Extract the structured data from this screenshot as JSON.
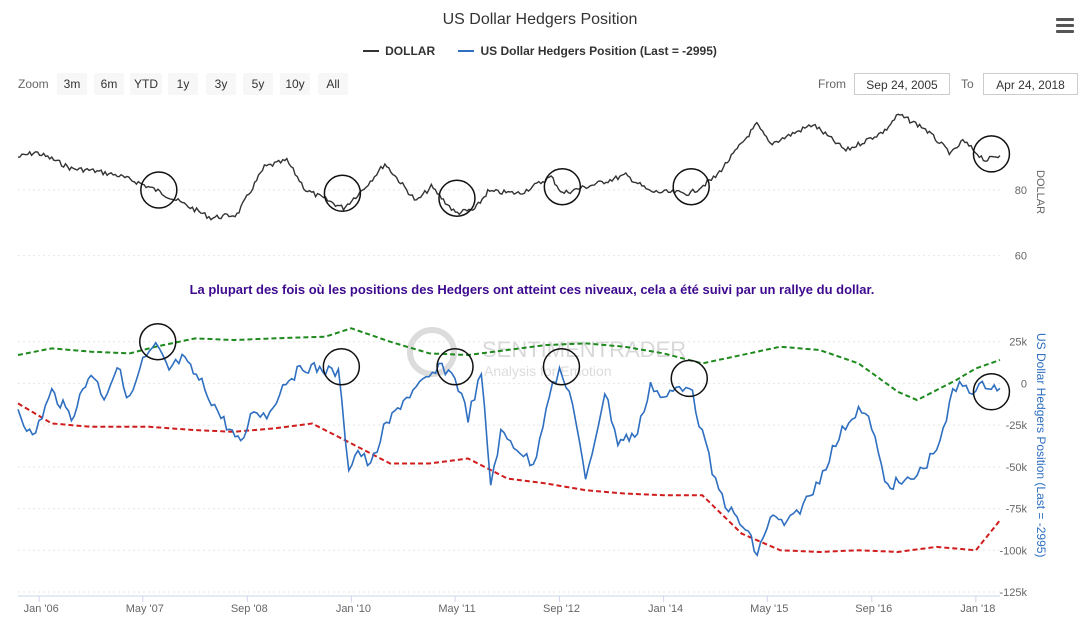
{
  "header": {
    "title": "US Dollar Hedgers Position",
    "legend": [
      {
        "label": "DOLLAR",
        "color": "#333333"
      },
      {
        "label": "US Dollar Hedgers Position (Last = -2995)",
        "color": "#2f6fc0"
      }
    ]
  },
  "toolbar": {
    "zoom_label": "Zoom",
    "zoom_buttons": [
      "3m",
      "6m",
      "YTD",
      "1y",
      "3y",
      "5y",
      "10y",
      "All"
    ],
    "from_label": "From",
    "from_value": "Sep 24, 2005",
    "to_label": "To",
    "to_value": "Apr 24, 2018"
  },
  "annotation": "La plupart des fois où les positions des Hedgers ont atteint ces niveaux, cela a été suivi par un rallye du dollar.",
  "watermark": {
    "line1": "SENTIMENTRADER",
    "line2": "Analysis for Emotion"
  },
  "colors": {
    "dollar": "#333333",
    "hedgers": "#2f6fc0",
    "upper_band": "#1e8a1e",
    "lower_band": "#d01c1c",
    "annotation": "#3d0a8f"
  },
  "chart_data": [
    {
      "type": "line",
      "title": "US Dollar Hedgers Position",
      "ylabel": "DOLLAR",
      "xlim": [
        "2005-09-24",
        "2018-04-24"
      ],
      "ylim": [
        55,
        105
      ],
      "yticks": [
        {
          "value": 60,
          "label": "60"
        },
        {
          "value": 80,
          "label": "80"
        }
      ],
      "series": [
        {
          "name": "DOLLAR",
          "points": [
            [
              "2005-09-24",
              90.0
            ],
            [
              "2005-12-15",
              91.5
            ],
            [
              "2006-03-01",
              89.5
            ],
            [
              "2006-06-01",
              86.5
            ],
            [
              "2006-09-01",
              86.0
            ],
            [
              "2007-01-01",
              84.5
            ],
            [
              "2007-04-01",
              82.5
            ],
            [
              "2007-07-01",
              80.0
            ],
            [
              "2007-11-01",
              76.0
            ],
            [
              "2008-03-15",
              71.5
            ],
            [
              "2008-07-15",
              72.5
            ],
            [
              "2008-11-20",
              87.0
            ],
            [
              "2009-03-05",
              89.0
            ],
            [
              "2009-06-01",
              80.0
            ],
            [
              "2009-11-25",
              74.5
            ],
            [
              "2010-03-01",
              80.5
            ],
            [
              "2010-06-07",
              88.0
            ],
            [
              "2010-11-01",
              76.5
            ],
            [
              "2011-01-10",
              81.0
            ],
            [
              "2011-05-03",
              73.0
            ],
            [
              "2011-08-01",
              74.0
            ],
            [
              "2011-10-01",
              79.5
            ],
            [
              "2012-03-01",
              79.0
            ],
            [
              "2012-07-24",
              84.0
            ],
            [
              "2012-09-14",
              79.0
            ],
            [
              "2013-02-01",
              81.5
            ],
            [
              "2013-07-08",
              84.5
            ],
            [
              "2013-10-30",
              79.5
            ],
            [
              "2014-05-08",
              79.0
            ],
            [
              "2014-09-01",
              84.0
            ],
            [
              "2015-03-13",
              100.0
            ],
            [
              "2015-05-15",
              94.0
            ],
            [
              "2015-12-01",
              100.0
            ],
            [
              "2016-05-03",
              92.0
            ],
            [
              "2016-11-01",
              98.0
            ],
            [
              "2017-01-03",
              103.0
            ],
            [
              "2017-05-01",
              99.0
            ],
            [
              "2017-09-08",
              91.0
            ],
            [
              "2017-11-01",
              95.0
            ],
            [
              "2018-02-15",
              89.0
            ],
            [
              "2018-04-24",
              90.5
            ]
          ]
        }
      ]
    },
    {
      "type": "line",
      "ylabel": "US Dollar Hedgers Position (Last = -2995)",
      "xlim": [
        "2005-09-24",
        "2018-04-24"
      ],
      "ylim": [
        -125000,
        35000
      ],
      "yticks": [
        {
          "value": 25000,
          "label": "25k"
        },
        {
          "value": 0,
          "label": "0"
        },
        {
          "value": -25000,
          "label": "-25k"
        },
        {
          "value": -50000,
          "label": "-50k"
        },
        {
          "value": -75000,
          "label": "-75k"
        },
        {
          "value": -100000,
          "label": "-100k"
        },
        {
          "value": -125000,
          "label": "-125k"
        }
      ],
      "xticks": [
        "Jan '06",
        "May '07",
        "Sep '08",
        "Jan '10",
        "May '11",
        "Sep '12",
        "Jan '14",
        "May '15",
        "Sep '16",
        "Jan '18"
      ],
      "series": [
        {
          "name": "US Dollar Hedgers Position (Last = -2995)",
          "points": [
            [
              "2005-09-24",
              -15000
            ],
            [
              "2005-12-01",
              -33000
            ],
            [
              "2006-03-01",
              -5000
            ],
            [
              "2006-06-01",
              -20000
            ],
            [
              "2006-09-01",
              7000
            ],
            [
              "2006-11-01",
              -8000
            ],
            [
              "2007-01-01",
              10000
            ],
            [
              "2007-03-01",
              -10000
            ],
            [
              "2007-05-01",
              13000
            ],
            [
              "2007-07-01",
              22000
            ],
            [
              "2007-09-01",
              8000
            ],
            [
              "2007-11-01",
              15000
            ],
            [
              "2008-02-01",
              0
            ],
            [
              "2008-05-01",
              -20000
            ],
            [
              "2008-08-01",
              -37000
            ],
            [
              "2008-10-01",
              -15000
            ],
            [
              "2008-12-01",
              -20000
            ],
            [
              "2009-03-01",
              2000
            ],
            [
              "2009-06-01",
              10000
            ],
            [
              "2009-09-01",
              8000
            ],
            [
              "2009-11-01",
              6000
            ],
            [
              "2009-12-20",
              -50000
            ],
            [
              "2010-02-01",
              -40000
            ],
            [
              "2010-04-01",
              -50000
            ],
            [
              "2010-06-01",
              -28000
            ],
            [
              "2010-09-01",
              -10000
            ],
            [
              "2010-12-01",
              0
            ],
            [
              "2011-03-01",
              10000
            ],
            [
              "2011-05-01",
              4000
            ],
            [
              "2011-07-01",
              -20000
            ],
            [
              "2011-09-01",
              5000
            ],
            [
              "2011-10-15",
              -60000
            ],
            [
              "2011-12-01",
              -30000
            ],
            [
              "2012-03-01",
              -40000
            ],
            [
              "2012-05-01",
              -50000
            ],
            [
              "2012-07-15",
              -5000
            ],
            [
              "2012-09-01",
              6000
            ],
            [
              "2012-11-01",
              -10000
            ],
            [
              "2013-01-01",
              -60000
            ],
            [
              "2013-04-01",
              -5000
            ],
            [
              "2013-06-01",
              -35000
            ],
            [
              "2013-09-01",
              -30000
            ],
            [
              "2013-11-01",
              0
            ],
            [
              "2014-01-01",
              -10000
            ],
            [
              "2014-03-01",
              -3000
            ],
            [
              "2014-05-01",
              0
            ],
            [
              "2014-07-01",
              -30000
            ],
            [
              "2014-09-01",
              -60000
            ],
            [
              "2014-11-01",
              -75000
            ],
            [
              "2015-02-01",
              -90000
            ],
            [
              "2015-03-15",
              -103000
            ],
            [
              "2015-05-15",
              -80000
            ],
            [
              "2015-08-01",
              -85000
            ],
            [
              "2015-10-01",
              -75000
            ],
            [
              "2015-12-01",
              -65000
            ],
            [
              "2016-03-01",
              -40000
            ],
            [
              "2016-05-01",
              -25000
            ],
            [
              "2016-07-01",
              -15000
            ],
            [
              "2016-09-01",
              -25000
            ],
            [
              "2016-11-01",
              -60000
            ],
            [
              "2017-02-01",
              -60000
            ],
            [
              "2017-04-01",
              -55000
            ],
            [
              "2017-06-01",
              -45000
            ],
            [
              "2017-08-01",
              -30000
            ],
            [
              "2017-09-15",
              -5000
            ],
            [
              "2017-11-01",
              0
            ],
            [
              "2018-01-01",
              -5000
            ],
            [
              "2018-02-15",
              0
            ],
            [
              "2018-04-24",
              -2995
            ]
          ]
        },
        {
          "name": "",
          "style": "dashed",
          "points": [
            [
              "2005-09-24",
              17000
            ],
            [
              "2006-03-01",
              21000
            ],
            [
              "2006-09-01",
              19000
            ],
            [
              "2007-03-01",
              18000
            ],
            [
              "2007-07-01",
              22000
            ],
            [
              "2008-01-01",
              27000
            ],
            [
              "2008-07-01",
              26000
            ],
            [
              "2009-01-01",
              27000
            ],
            [
              "2009-09-01",
              28000
            ],
            [
              "2010-01-01",
              33000
            ],
            [
              "2010-07-01",
              25000
            ],
            [
              "2011-01-01",
              18000
            ],
            [
              "2011-07-01",
              17000
            ],
            [
              "2012-01-01",
              20000
            ],
            [
              "2012-07-01",
              23000
            ],
            [
              "2013-01-01",
              24000
            ],
            [
              "2013-07-01",
              22000
            ],
            [
              "2014-01-01",
              18000
            ],
            [
              "2014-07-01",
              12000
            ],
            [
              "2015-01-01",
              17000
            ],
            [
              "2015-07-01",
              22000
            ],
            [
              "2016-01-01",
              20000
            ],
            [
              "2016-07-01",
              12000
            ],
            [
              "2017-01-01",
              -5000
            ],
            [
              "2017-04-01",
              -10000
            ],
            [
              "2017-10-01",
              2000
            ],
            [
              "2018-01-01",
              9000
            ],
            [
              "2018-04-24",
              14000
            ]
          ]
        },
        {
          "name": "",
          "style": "dashed",
          "points": [
            [
              "2005-09-24",
              -12000
            ],
            [
              "2006-03-01",
              -24000
            ],
            [
              "2006-09-01",
              -26000
            ],
            [
              "2007-06-01",
              -26000
            ],
            [
              "2008-01-01",
              -28000
            ],
            [
              "2008-07-01",
              -29000
            ],
            [
              "2009-01-01",
              -27000
            ],
            [
              "2009-07-01",
              -24000
            ],
            [
              "2010-01-01",
              -36000
            ],
            [
              "2010-07-01",
              -48000
            ],
            [
              "2011-01-01",
              -48000
            ],
            [
              "2011-07-01",
              -45000
            ],
            [
              "2012-01-01",
              -57000
            ],
            [
              "2012-07-01",
              -60000
            ],
            [
              "2013-01-01",
              -64000
            ],
            [
              "2013-07-01",
              -66000
            ],
            [
              "2014-01-01",
              -67000
            ],
            [
              "2014-07-01",
              -67000
            ],
            [
              "2015-01-01",
              -90000
            ],
            [
              "2015-07-01",
              -100000
            ],
            [
              "2016-01-01",
              -101000
            ],
            [
              "2016-07-01",
              -100000
            ],
            [
              "2017-01-01",
              -101000
            ],
            [
              "2017-07-01",
              -98000
            ],
            [
              "2018-01-01",
              -100000
            ],
            [
              "2018-04-24",
              -82000
            ]
          ]
        }
      ]
    }
  ]
}
